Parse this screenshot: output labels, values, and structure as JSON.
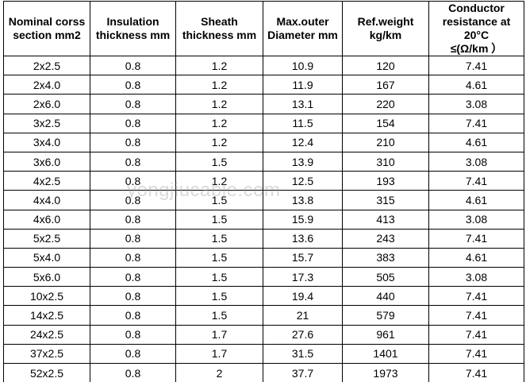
{
  "table": {
    "header": [
      [
        "Nominal corss",
        "section mm2"
      ],
      [
        "Insulation",
        "thickness mm"
      ],
      [
        "Sheath",
        "thickness mm"
      ],
      [
        "Max.outer",
        "Diameter mm"
      ],
      [
        "Ref.weight",
        "kg/km"
      ],
      [
        "Conductor",
        "resistance at 20°C",
        "≤(Ω/km ）"
      ]
    ],
    "rows": [
      [
        "2x2.5",
        "0.8",
        "1.2",
        "10.9",
        "120",
        "7.41"
      ],
      [
        "2x4.0",
        "0.8",
        "1.2",
        "11.9",
        "167",
        "4.61"
      ],
      [
        "2x6.0",
        "0.8",
        "1.2",
        "13.1",
        "220",
        "3.08"
      ],
      [
        "3x2.5",
        "0.8",
        "1.2",
        "11.5",
        "154",
        "7.41"
      ],
      [
        "3x4.0",
        "0.8",
        "1.2",
        "12.4",
        "210",
        "4.61"
      ],
      [
        "3x6.0",
        "0.8",
        "1.5",
        "13.9",
        "310",
        "3.08"
      ],
      [
        "4x2.5",
        "0.8",
        "1.2",
        "12.5",
        "193",
        "7.41"
      ],
      [
        "4x4.0",
        "0.8",
        "1.5",
        "13.8",
        "315",
        "4.61"
      ],
      [
        "4x6.0",
        "0.8",
        "1.5",
        "15.9",
        "413",
        "3.08"
      ],
      [
        "5x2.5",
        "0.8",
        "1.5",
        "13.6",
        "243",
        "7.41"
      ],
      [
        "5x4.0",
        "0.8",
        "1.5",
        "15.7",
        "383",
        "4.61"
      ],
      [
        "5x6.0",
        "0.8",
        "1.5",
        "17.3",
        "505",
        "3.08"
      ],
      [
        "10x2.5",
        "0.8",
        "1.5",
        "19.4",
        "440",
        "7.41"
      ],
      [
        "14x2.5",
        "0.8",
        "1.5",
        "21",
        "579",
        "7.41"
      ],
      [
        "24x2.5",
        "0.8",
        "1.7",
        "27.6",
        "961",
        "7.41"
      ],
      [
        "37x2.5",
        "0.8",
        "1.7",
        "31.5",
        "1401",
        "7.41"
      ],
      [
        "52x2.5",
        "0.8",
        "2",
        "37.7",
        "1973",
        "7.41"
      ]
    ]
  },
  "watermark": "yongjiucable.com"
}
